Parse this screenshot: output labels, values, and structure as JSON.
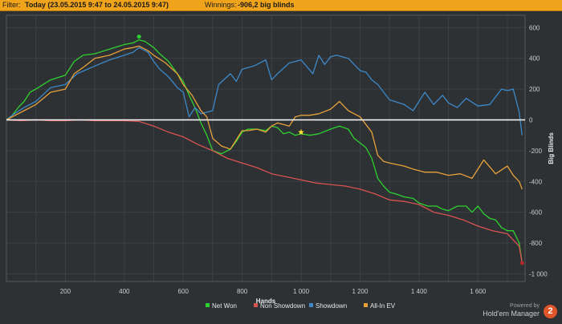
{
  "filterbar": {
    "prefix": "Filter:",
    "range": "Today (23.05.2015 9:47 to 24.05.2015 9:47)",
    "winnings_label": "Winnings:",
    "winnings_value": "-906,2 big blinds"
  },
  "branding": {
    "powered": "Powered by",
    "name": "Hold'em Manager",
    "version": "2"
  },
  "chart_data": {
    "type": "line",
    "xlabel": "Hands",
    "ylabel": "Big Blinds",
    "xlim": [
      0,
      1760
    ],
    "ylim": [
      -1050,
      680
    ],
    "xticks": [
      200,
      400,
      600,
      800,
      1000,
      1200,
      1400,
      1600
    ],
    "xtick_labels": [
      "200",
      "400",
      "600",
      "800",
      "1 000",
      "1 200",
      "1 400",
      "1 600"
    ],
    "yticks": [
      600,
      400,
      200,
      0,
      -200,
      -400,
      -600,
      -800,
      -1000
    ],
    "ytick_labels": [
      "600",
      "400",
      "200",
      "0",
      "-200",
      "-400",
      "-600",
      "-800",
      "-1 000"
    ],
    "grid": true,
    "legend_position": "bottom",
    "series": [
      {
        "name": "Net Won",
        "color": "#2fd12f",
        "x": [
          0,
          20,
          40,
          60,
          80,
          100,
          150,
          200,
          230,
          260,
          300,
          350,
          400,
          430,
          450,
          470,
          500,
          520,
          550,
          580,
          600,
          620,
          640,
          660,
          680,
          700,
          730,
          760,
          780,
          800,
          820,
          850,
          880,
          900,
          920,
          940,
          960,
          980,
          1000,
          1030,
          1060,
          1100,
          1130,
          1160,
          1180,
          1200,
          1220,
          1240,
          1260,
          1280,
          1300,
          1320,
          1350,
          1380,
          1400,
          1430,
          1460,
          1480,
          1500,
          1530,
          1560,
          1580,
          1600,
          1620,
          1640,
          1660,
          1680,
          1700,
          1720,
          1740,
          1750
        ],
        "y": [
          0,
          30,
          80,
          120,
          180,
          200,
          260,
          290,
          380,
          420,
          430,
          460,
          490,
          500,
          520,
          510,
          470,
          430,
          380,
          300,
          250,
          160,
          80,
          -20,
          -100,
          -200,
          -220,
          -190,
          -140,
          -80,
          -60,
          -60,
          -70,
          -40,
          -50,
          -90,
          -80,
          -100,
          -90,
          -100,
          -90,
          -60,
          -40,
          -60,
          -120,
          -150,
          -180,
          -250,
          -380,
          -430,
          -470,
          -480,
          -500,
          -510,
          -540,
          -560,
          -560,
          -580,
          -590,
          -560,
          -560,
          -600,
          -560,
          -610,
          -640,
          -650,
          -700,
          -720,
          -720,
          -800,
          -930
        ]
      },
      {
        "name": "Non Showdown",
        "color": "#d9534f",
        "x": [
          0,
          50,
          100,
          150,
          200,
          250,
          300,
          350,
          400,
          450,
          500,
          550,
          600,
          650,
          700,
          750,
          800,
          850,
          900,
          950,
          1000,
          1050,
          1100,
          1150,
          1200,
          1250,
          1300,
          1350,
          1400,
          1450,
          1500,
          1550,
          1600,
          1650,
          1700,
          1740,
          1750
        ],
        "y": [
          0,
          -5,
          0,
          -5,
          -5,
          0,
          -5,
          -5,
          -5,
          -10,
          -40,
          -80,
          -110,
          -160,
          -200,
          -250,
          -280,
          -310,
          -350,
          -370,
          -390,
          -410,
          -420,
          -430,
          -450,
          -480,
          -520,
          -530,
          -550,
          -600,
          -620,
          -650,
          -690,
          -720,
          -740,
          -820,
          -930
        ]
      },
      {
        "name": "Showdown",
        "color": "#3d89c9",
        "x": [
          0,
          20,
          60,
          100,
          150,
          200,
          240,
          300,
          350,
          400,
          430,
          450,
          480,
          500,
          520,
          550,
          580,
          600,
          620,
          640,
          660,
          700,
          720,
          760,
          780,
          800,
          840,
          880,
          900,
          920,
          960,
          1000,
          1040,
          1060,
          1080,
          1100,
          1120,
          1160,
          1200,
          1220,
          1240,
          1260,
          1300,
          1350,
          1380,
          1420,
          1450,
          1480,
          1500,
          1530,
          1560,
          1600,
          1640,
          1680,
          1700,
          1720,
          1740,
          1750
        ],
        "y": [
          0,
          30,
          80,
          120,
          210,
          230,
          300,
          350,
          390,
          420,
          440,
          470,
          440,
          380,
          330,
          280,
          210,
          180,
          20,
          80,
          40,
          60,
          230,
          300,
          250,
          330,
          350,
          390,
          260,
          300,
          370,
          390,
          300,
          420,
          360,
          410,
          420,
          400,
          320,
          310,
          260,
          230,
          130,
          100,
          60,
          180,
          100,
          160,
          110,
          80,
          140,
          90,
          100,
          200,
          190,
          200,
          50,
          -100
        ]
      },
      {
        "name": "All-In EV",
        "color": "#e8a13a",
        "x": [
          0,
          20,
          60,
          100,
          150,
          200,
          230,
          260,
          300,
          350,
          400,
          430,
          450,
          480,
          500,
          540,
          580,
          600,
          630,
          660,
          680,
          700,
          730,
          760,
          780,
          800,
          820,
          850,
          880,
          900,
          920,
          940,
          960,
          980,
          1000,
          1030,
          1060,
          1100,
          1130,
          1160,
          1180,
          1200,
          1220,
          1240,
          1260,
          1280,
          1300,
          1350,
          1380,
          1420,
          1460,
          1500,
          1540,
          1580,
          1620,
          1660,
          1700,
          1720,
          1740,
          1750
        ],
        "y": [
          0,
          20,
          60,
          100,
          180,
          200,
          300,
          340,
          400,
          420,
          460,
          470,
          480,
          450,
          420,
          370,
          300,
          230,
          160,
          60,
          20,
          -120,
          -170,
          -190,
          -130,
          -70,
          -70,
          -60,
          -80,
          -40,
          -20,
          -30,
          -40,
          20,
          30,
          30,
          40,
          70,
          120,
          60,
          40,
          20,
          -30,
          -80,
          -230,
          -270,
          -280,
          -300,
          -320,
          -340,
          -340,
          -360,
          -350,
          -380,
          -260,
          -350,
          -300,
          -360,
          -400,
          -450
        ]
      }
    ],
    "annotations": [
      {
        "type": "star",
        "color": "#ffe033",
        "x": 1000,
        "y": -80
      }
    ]
  }
}
